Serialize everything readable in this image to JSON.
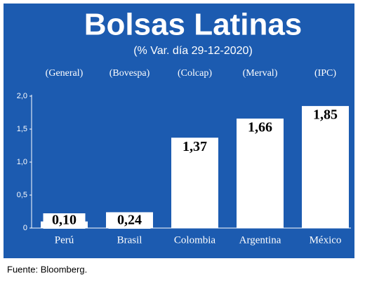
{
  "chart_data": {
    "type": "bar",
    "title": "Bolsas Latinas",
    "subtitle": "(% Var. día 29-12-2020)",
    "annotations": [
      "(General)",
      "(Bovespa)",
      "(Colcap)",
      "(Merval)",
      "(IPC)"
    ],
    "categories": [
      "Perú",
      "Brasil",
      "Colombia",
      "Argentina",
      "México"
    ],
    "values": [
      0.1,
      0.24,
      1.37,
      1.66,
      1.85
    ],
    "value_labels": [
      "0,10",
      "0,24",
      "1,37",
      "1,66",
      "1,85"
    ],
    "color": "#ffffff",
    "ylim": [
      0,
      2
    ],
    "yticks": [
      0,
      {
        "value": 0.5,
        "label": "0,5"
      },
      {
        "value": 1,
        "label": "1,0"
      },
      {
        "value": 1.5,
        "label": "1,5"
      },
      {
        "value": 2,
        "label": "2,0"
      }
    ],
    "source": "Fuente: Bloomberg."
  }
}
